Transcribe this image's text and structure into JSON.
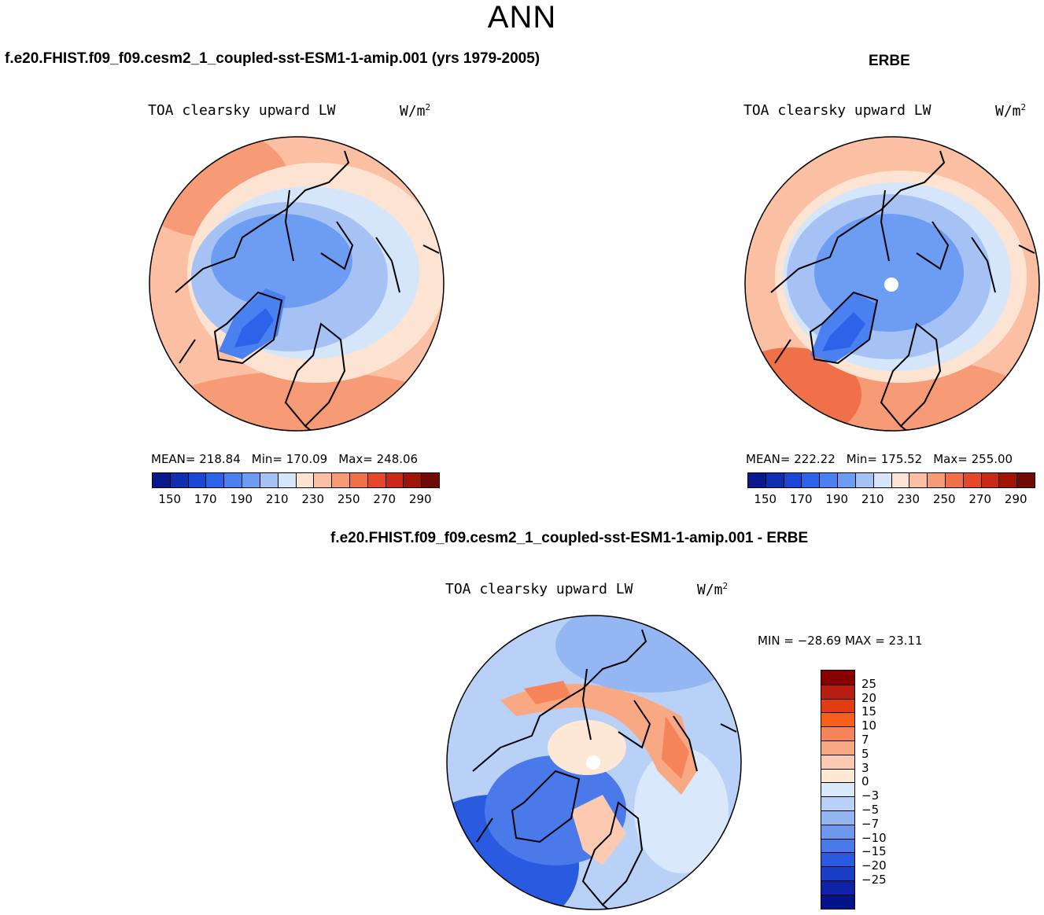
{
  "figure": {
    "title": "ANN",
    "case1_title": "f.e20.FHIST.f09_f09.cesm2_1_coupled-sst-ESM1-1-amip.001 (yrs 1979-2005)",
    "case2_title": "ERBE",
    "diff_title": "f.e20.FHIST.f09_f09.cesm2_1_coupled-sst-ESM1-1-amip.001 - ERBE"
  },
  "panels": [
    {
      "variable": "TOA clearsky upward LW",
      "units_base": "W/m",
      "units_exp": "2",
      "mean_label": "MEAN=",
      "mean": "218.84",
      "min_label": "Min=",
      "min": "170.09",
      "max_label": "Max=",
      "max": "248.06"
    },
    {
      "variable": "TOA clearsky upward LW",
      "units_base": "W/m",
      "units_exp": "2",
      "mean_label": "MEAN=",
      "mean": "222.22",
      "min_label": "Min=",
      "min": "175.52",
      "max_label": "Max=",
      "max": "255.00"
    },
    {
      "variable": "TOA clearsky upward LW",
      "units_base": "W/m",
      "units_exp": "2",
      "minmax_text": "MIN = −28.69 MAX =   23.11"
    }
  ],
  "colorbar_abs": {
    "colors": [
      "#0a1a8c",
      "#0d2fb0",
      "#1a47d6",
      "#2d63e8",
      "#4a80f0",
      "#6d9cf3",
      "#a6c2f5",
      "#d6e6fa",
      "#fde3d2",
      "#fbc0a4",
      "#f79a76",
      "#f0704a",
      "#e5472b",
      "#c92a18",
      "#9e1508",
      "#700a05"
    ],
    "tick_labels": [
      "150",
      "170",
      "190",
      "210",
      "230",
      "250",
      "270",
      "290"
    ]
  },
  "colorbar_diff": {
    "colors": [
      "#880000",
      "#b81e10",
      "#e03d15",
      "#f5601f",
      "#f5845a",
      "#f8a882",
      "#fccab0",
      "#fde8d6",
      "#d9e8fb",
      "#b9d0f7",
      "#94b6f3",
      "#6e98ee",
      "#4a79ea",
      "#2a5ae0",
      "#1a3ec8",
      "#0e24a8",
      "#05128a"
    ],
    "tick_labels": [
      "25",
      "20",
      "15",
      "10",
      "7",
      "5",
      "3",
      "0",
      "−3",
      "−5",
      "−7",
      "−10",
      "−15",
      "−20",
      "−25"
    ]
  },
  "chart_data": [
    {
      "type": "heatmap",
      "title": "TOA clearsky upward LW",
      "case": "f.e20.FHIST.f09_f09.cesm2_1_coupled-sst-ESM1-1-amip.001 (yrs 1979-2005)",
      "projection": "north-polar-stereographic",
      "units": "W/m2",
      "levels": [
        150,
        160,
        170,
        180,
        190,
        200,
        210,
        220,
        230,
        240,
        250,
        260,
        270,
        280,
        290
      ],
      "mean": 218.84,
      "min": 170.09,
      "max": 248.06
    },
    {
      "type": "heatmap",
      "title": "TOA clearsky upward LW",
      "case": "ERBE",
      "projection": "north-polar-stereographic",
      "units": "W/m2",
      "levels": [
        150,
        160,
        170,
        180,
        190,
        200,
        210,
        220,
        230,
        240,
        250,
        260,
        270,
        280,
        290
      ],
      "mean": 222.22,
      "min": 175.52,
      "max": 255.0
    },
    {
      "type": "heatmap",
      "title": "TOA clearsky upward LW",
      "case": "f.e20.FHIST.f09_f09.cesm2_1_coupled-sst-ESM1-1-amip.001 - ERBE",
      "projection": "north-polar-stereographic",
      "units": "W/m2",
      "levels": [
        -25,
        -20,
        -15,
        -10,
        -7,
        -5,
        -3,
        0,
        3,
        5,
        7,
        10,
        15,
        20,
        25
      ],
      "min": -28.69,
      "max": 23.11
    }
  ]
}
